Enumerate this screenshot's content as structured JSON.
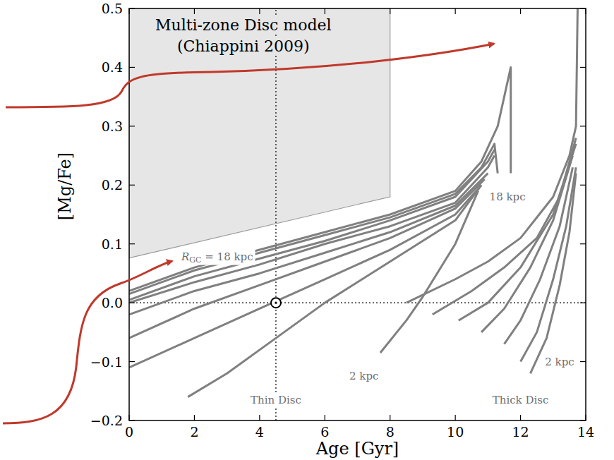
{
  "chart_data": {
    "type": "line",
    "x_label": "Age [Gyr]",
    "y_label": "[Mg/Fe]",
    "xlim": [
      0,
      14
    ],
    "ylim": [
      -0.2,
      0.5
    ],
    "xticks": [
      0,
      2,
      4,
      6,
      8,
      10,
      12,
      14
    ],
    "yticks": [
      {
        "value": -0.2,
        "label": "−0.2"
      },
      {
        "value": -0.1,
        "label": "−0.1"
      },
      {
        "value": 0,
        "label": "0.0"
      },
      0.1,
      0.2,
      0.3,
      0.4,
      0.5
    ],
    "grid": false,
    "shaded_region": {
      "x": [
        0,
        8
      ],
      "lower": [
        0.076,
        0.18
      ],
      "upper": [
        0.5,
        0.5
      ],
      "color": "#e6e6e6"
    },
    "reference_lines": {
      "x": [
        4.5
      ],
      "y": [
        0
      ]
    },
    "sun_marker": {
      "x": 4.5,
      "y": 0
    },
    "annotations": [
      {
        "text": "Multi-zone Disc model",
        "x": 3.5,
        "y": 0.472
      },
      {
        "text": "(Chiappini 2009)",
        "x": 3.5,
        "y": 0.436
      },
      {
        "symbol": "R",
        "subscript": "GC",
        "text": " = 18 kpc",
        "x": 2.7,
        "y": 0.078
      },
      {
        "text": "18 kpc",
        "x": 11.6,
        "y": 0.18
      },
      {
        "text": "2 kpc",
        "x": 7.2,
        "y": -0.125
      },
      {
        "text": "2 kpc",
        "x": 13.2,
        "y": -0.1
      },
      {
        "text": "Thin Disc",
        "x": 4.5,
        "y": -0.165
      },
      {
        "text": "Thick Disc",
        "x": 12.0,
        "y": -0.165
      }
    ],
    "series": [
      {
        "color": "#808080",
        "x": [
          0,
          2,
          4,
          6,
          8,
          10,
          10.8,
          11.3,
          11.7,
          11.7
        ],
        "values": [
          0.02,
          0.06,
          0.09,
          0.12,
          0.15,
          0.19,
          0.24,
          0.3,
          0.4,
          0.22
        ]
      },
      {
        "color": "#808080",
        "x": [
          0,
          2,
          4,
          6,
          8,
          10,
          10.8,
          11.2,
          11.3
        ],
        "values": [
          0.015,
          0.055,
          0.085,
          0.115,
          0.145,
          0.185,
          0.23,
          0.27,
          0.22
        ]
      },
      {
        "color": "#808080",
        "x": [
          0,
          2,
          4,
          6,
          8,
          10,
          11,
          11.2
        ],
        "values": [
          0.005,
          0.045,
          0.075,
          0.105,
          0.14,
          0.18,
          0.24,
          0.26
        ]
      },
      {
        "color": "#808080",
        "x": [
          0,
          2,
          4,
          6,
          8,
          10,
          11,
          11.2
        ],
        "values": [
          0.0,
          0.035,
          0.065,
          0.1,
          0.13,
          0.17,
          0.23,
          0.25
        ]
      },
      {
        "color": "#808080",
        "x": [
          0,
          2,
          4,
          6,
          8,
          10,
          11
        ],
        "values": [
          -0.02,
          0.02,
          0.05,
          0.085,
          0.12,
          0.165,
          0.22
        ]
      },
      {
        "color": "#808080",
        "x": [
          0,
          2,
          4,
          6,
          8,
          10,
          10.9
        ],
        "values": [
          -0.06,
          -0.01,
          0.03,
          0.07,
          0.11,
          0.16,
          0.21
        ]
      },
      {
        "color": "#808080",
        "x": [
          0,
          2,
          4,
          6,
          8,
          10,
          10.8
        ],
        "values": [
          -0.11,
          -0.06,
          -0.01,
          0.04,
          0.09,
          0.15,
          0.2
        ]
      },
      {
        "color": "#808080",
        "x": [
          1.8,
          3,
          4,
          6,
          8,
          10,
          10.8
        ],
        "values": [
          -0.16,
          -0.12,
          -0.08,
          0.0,
          0.07,
          0.14,
          0.2
        ]
      },
      {
        "color": "#808080",
        "x": [
          7.7,
          8.5,
          9,
          10,
          10.7
        ],
        "values": [
          -0.085,
          -0.03,
          0.01,
          0.1,
          0.19
        ]
      },
      {
        "color": "#808080",
        "x": [
          8.5,
          10,
          11,
          12,
          13,
          13.5,
          13.7,
          13.75
        ],
        "values": [
          0.0,
          0.04,
          0.07,
          0.11,
          0.18,
          0.25,
          0.3,
          0.5
        ]
      },
      {
        "color": "#808080",
        "x": [
          9.3,
          10.5,
          11.5,
          12.5,
          13.2,
          13.7
        ],
        "values": [
          -0.02,
          0.02,
          0.06,
          0.11,
          0.18,
          0.28
        ]
      },
      {
        "color": "#808080",
        "x": [
          10.1,
          11,
          12,
          13,
          13.7
        ],
        "values": [
          -0.03,
          0.0,
          0.06,
          0.15,
          0.27
        ]
      },
      {
        "color": "#808080",
        "x": [
          10.8,
          11.5,
          12.3,
          13,
          13.6
        ],
        "values": [
          -0.05,
          -0.01,
          0.06,
          0.14,
          0.25
        ]
      },
      {
        "color": "#808080",
        "x": [
          11.5,
          12,
          12.6,
          13.2,
          13.6
        ],
        "values": [
          -0.07,
          -0.03,
          0.04,
          0.13,
          0.23
        ]
      },
      {
        "color": "#808080",
        "x": [
          12,
          12.5,
          13,
          13.4,
          13.7
        ],
        "values": [
          -0.1,
          -0.05,
          0.04,
          0.13,
          0.23
        ]
      },
      {
        "color": "#808080",
        "x": [
          12.3,
          12.8,
          13.2,
          13.5,
          13.7
        ],
        "values": [
          -0.12,
          -0.06,
          0.03,
          0.12,
          0.22
        ]
      }
    ]
  }
}
